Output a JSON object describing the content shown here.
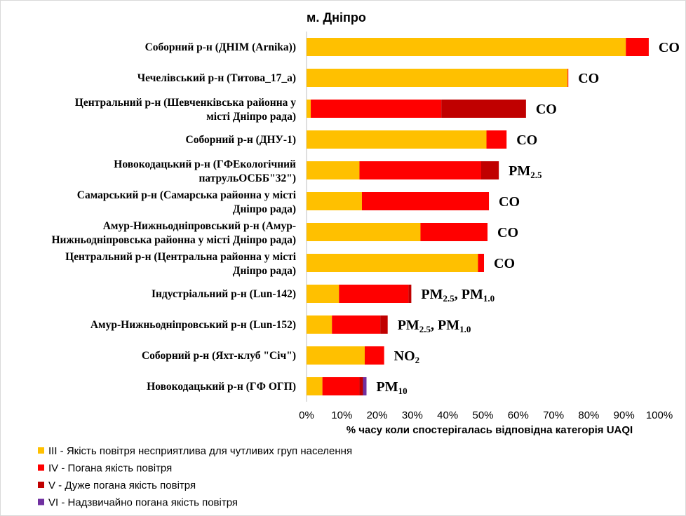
{
  "chart_data": {
    "type": "bar",
    "orientation": "horizontal",
    "stacked": true,
    "title": "м. Дніпро",
    "xlabel": "% часу коли спостерігалась відповідна категорія UAQI",
    "ylabel": "",
    "xlim": [
      0,
      100
    ],
    "grid": false,
    "legend_position": "bottom-left",
    "x_ticks": [
      "0%",
      "10%",
      "20%",
      "30%",
      "40%",
      "50%",
      "60%",
      "70%",
      "80%",
      "90%",
      "100%"
    ],
    "categories": [
      [
        "Соборний р-н (ДНІМ (Arnika))"
      ],
      [
        "Чечелівський р-н (Титова_17_а)"
      ],
      [
        "Центральний р-н (Шевченківська районна у",
        "місті Дніпро рада)"
      ],
      [
        "Соборний р-н (ДНУ-1)"
      ],
      [
        "Новокодацький р-н (ГФЕкологічний",
        "патрульОСББ\"32\")"
      ],
      [
        "Самарський р-н (Самарська районна у місті",
        "Дніпро рада)"
      ],
      [
        "Амур-Нижньодніпровський р-н (Амур-",
        "Нижньодніпровська районна у місті Дніпро рада)"
      ],
      [
        "Центральний р-н (Центральна районна у місті",
        "Дніпро рада)"
      ],
      [
        "Індустріальний р-н (Lun-142)"
      ],
      [
        "Амур-Нижньодніпровський р-н (Lun-152)"
      ],
      [
        "Соборний р-н (Яхт-клуб \"Січ\")"
      ],
      [
        "Новокодацький р-н (ГФ ОГП)"
      ]
    ],
    "series": [
      {
        "name": "III - Якість повітря несприятлива для чутливих груп населення",
        "color": "#FFC000",
        "values": [
          90.5,
          74,
          1.2,
          51,
          15,
          15.7,
          32.3,
          48.6,
          9.2,
          7.2,
          16.5,
          4.5
        ]
      },
      {
        "name": "IV - Погана якість повітря",
        "color": "#FF0000",
        "values": [
          6.5,
          0.2,
          37,
          5.7,
          34.5,
          36,
          19,
          1.7,
          19.7,
          13.7,
          5.5,
          10.5
        ]
      },
      {
        "name": "V - Дуже погана якість повітря",
        "color": "#C00000",
        "values": [
          0,
          0,
          24,
          0,
          5,
          0,
          0,
          0,
          0.8,
          2.1,
          0,
          1
        ]
      },
      {
        "name": "VI - Надзвичайно погана якість повітря",
        "color": "#7030A0",
        "values": [
          0,
          0,
          0,
          0,
          0,
          0,
          0,
          0,
          0,
          0,
          0,
          1
        ]
      }
    ],
    "bar_labels": [
      [
        {
          "t": "CO"
        }
      ],
      [
        {
          "t": "CO"
        }
      ],
      [
        {
          "t": "CO"
        }
      ],
      [
        {
          "t": "CO"
        }
      ],
      [
        {
          "t": "PM"
        },
        {
          "t": "2.5",
          "sub": true
        }
      ],
      [
        {
          "t": "CO"
        }
      ],
      [
        {
          "t": "CO"
        }
      ],
      [
        {
          "t": "CO"
        }
      ],
      [
        {
          "t": "PM"
        },
        {
          "t": "2.5",
          "sub": true
        },
        {
          "t": ", PM"
        },
        {
          "t": "1.0",
          "sub": true
        }
      ],
      [
        {
          "t": "PM"
        },
        {
          "t": "2.5",
          "sub": true
        },
        {
          "t": ", PM"
        },
        {
          "t": "1.0",
          "sub": true
        }
      ],
      [
        {
          "t": "NO"
        },
        {
          "t": "2",
          "sub": true
        }
      ],
      [
        {
          "t": "PM"
        },
        {
          "t": "10",
          "sub": true
        }
      ]
    ]
  }
}
